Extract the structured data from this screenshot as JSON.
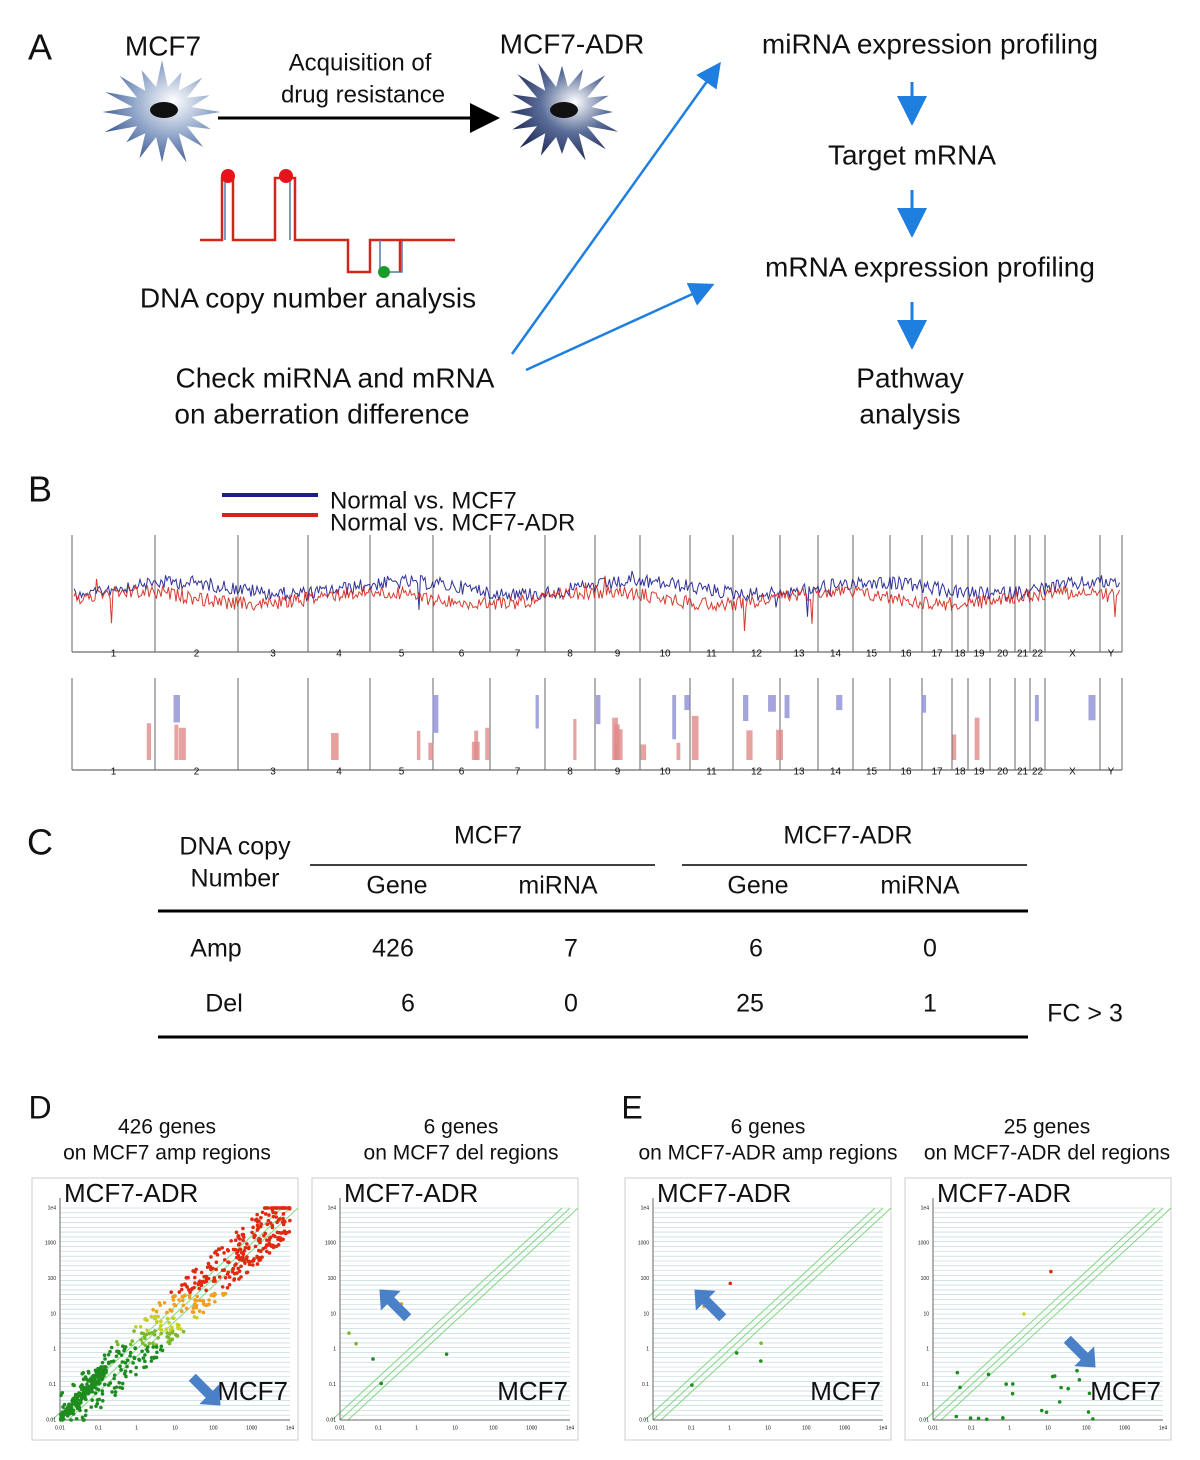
{
  "panel_a": {
    "label": "A",
    "source_cell": "MCF7",
    "process": [
      "Acquisition of",
      "drug resistance"
    ],
    "resistant_cell": "MCF7-ADR",
    "copy_number": "DNA copy number analysis",
    "check": [
      "Check miRNA and mRNA",
      "on aberration difference"
    ],
    "workflow": [
      "miRNA expression profiling",
      "Target mRNA",
      "mRNA expression profiling"
    ],
    "final_step": [
      "Pathway",
      "analysis"
    ]
  },
  "panel_b": {
    "label": "B",
    "legend": [
      {
        "name": "Normal vs. MCF7",
        "color": "#1c1c8e"
      },
      {
        "name": "Normal vs. MCF7-ADR",
        "color": "#d3261a"
      }
    ],
    "chromosomes": [
      "1",
      "2",
      "3",
      "4",
      "5",
      "6",
      "7",
      "8",
      "9",
      "10",
      "11",
      "12",
      "13",
      "14",
      "15",
      "16",
      "17",
      "18",
      "19",
      "20",
      "21",
      "22",
      "X",
      "Y"
    ]
  },
  "panel_c": {
    "label": "C",
    "table": {
      "corner": [
        "DNA copy",
        "Number"
      ],
      "groups": [
        "MCF7",
        "MCF7-ADR"
      ],
      "columns": [
        "Gene",
        "miRNA",
        "Gene",
        "miRNA"
      ],
      "rows": [
        [
          "Amp",
          426,
          7,
          6,
          0
        ],
        [
          "Del",
          6,
          0,
          25,
          1
        ]
      ]
    },
    "note": "FC > 3"
  },
  "panel_d": {
    "label": "D",
    "plots": [
      {
        "title": [
          "426 genes",
          "on MCF7 amp regions"
        ],
        "y_label": "MCF7-ADR",
        "x_label": "MCF7"
      },
      {
        "title": [
          "6 genes",
          "on MCF7 del regions"
        ],
        "y_label": "MCF7-ADR",
        "x_label": "MCF7"
      }
    ]
  },
  "panel_e": {
    "label": "E",
    "plots": [
      {
        "title": [
          "6 genes",
          "on MCF7-ADR amp regions"
        ],
        "y_label": "MCF7-ADR",
        "x_label": "MCF7"
      },
      {
        "title": [
          "25 genes",
          "on MCF7-ADR del regions"
        ],
        "y_label": "MCF7-ADR",
        "x_label": "MCF7"
      }
    ]
  },
  "axis_ticks": [
    "0.01",
    "0.1",
    "1",
    "10",
    "100",
    "1000",
    "1e4"
  ]
}
